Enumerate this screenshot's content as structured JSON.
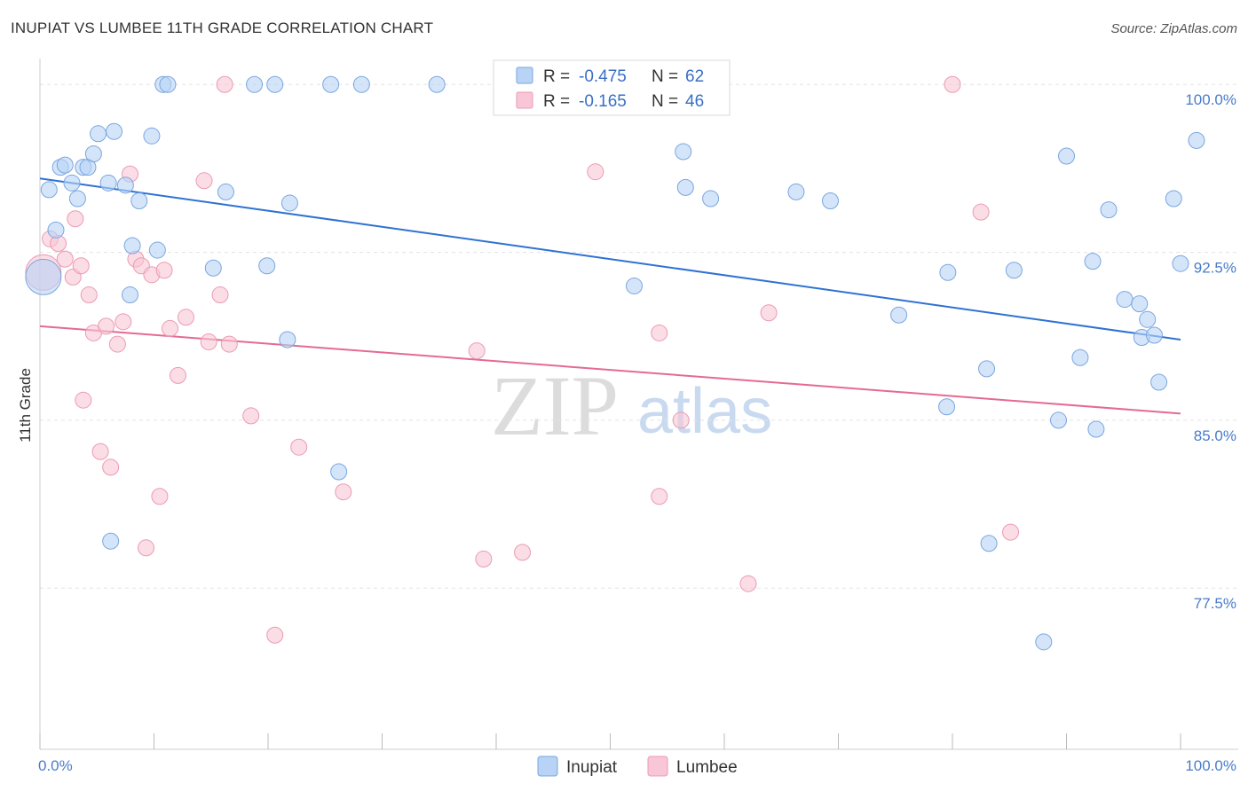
{
  "title": "INUPIAT VS LUMBEE 11TH GRADE CORRELATION CHART",
  "source": "Source: ZipAtlas.com",
  "watermark": {
    "zip": "ZIP",
    "atlas": "atlas"
  },
  "colors": {
    "inupiat_fill": "#b8d3f5",
    "inupiat_stroke": "#7aa6e0",
    "inupiat_line": "#2e72d2",
    "lumbee_fill": "#f8c6d6",
    "lumbee_stroke": "#ec9ab5",
    "lumbee_line": "#e46a94",
    "grid": "#e3e3e3",
    "axis_text": "#4a7cc9"
  },
  "legend": {
    "rows": [
      {
        "r_label": "R =",
        "r_value": "-0.475",
        "n_label": "N =",
        "n_value": "62"
      },
      {
        "r_label": "R =",
        "r_value": "-0.165",
        "n_label": "N =",
        "n_value": "46"
      }
    ]
  },
  "chart_data": {
    "type": "scatter",
    "xlabel": "",
    "ylabel": "11th Grade",
    "xlim": [
      0,
      100
    ],
    "ylim": [
      70.3,
      101.0
    ],
    "x_tick_labels": [
      "0.0%",
      "100.0%"
    ],
    "y_ticks": [
      77.5,
      85.0,
      92.5,
      100.0
    ],
    "y_tick_labels": [
      "77.5%",
      "85.0%",
      "92.5%",
      "100.0%"
    ],
    "grid": true,
    "legend_position": "top-center",
    "series": [
      {
        "name": "Inupiat",
        "trend": {
          "x": [
            0,
            100
          ],
          "y": [
            95.8,
            88.6
          ]
        },
        "points": [
          [
            0.3,
            91.4,
            20
          ],
          [
            0.8,
            95.3,
            9
          ],
          [
            1.4,
            93.5,
            9
          ],
          [
            1.8,
            96.3,
            9
          ],
          [
            2.2,
            96.4,
            9
          ],
          [
            2.8,
            95.6,
            9
          ],
          [
            3.3,
            94.9,
            9
          ],
          [
            3.8,
            96.3,
            9
          ],
          [
            4.2,
            96.3,
            9
          ],
          [
            4.7,
            96.9,
            9
          ],
          [
            5.1,
            97.8,
            9
          ],
          [
            6.0,
            95.6,
            9
          ],
          [
            6.5,
            97.9,
            9
          ],
          [
            7.5,
            95.5,
            9
          ],
          [
            8.1,
            92.8,
            9
          ],
          [
            8.7,
            94.8,
            9
          ],
          [
            9.8,
            97.7,
            9
          ],
          [
            10.3,
            92.6,
            9
          ],
          [
            7.9,
            90.6,
            9
          ],
          [
            6.2,
            79.6,
            9
          ],
          [
            10.8,
            100.0,
            9
          ],
          [
            11.2,
            100.0,
            9
          ],
          [
            15.2,
            91.8,
            9
          ],
          [
            16.3,
            95.2,
            9
          ],
          [
            18.8,
            100.0,
            9
          ],
          [
            19.9,
            91.9,
            9
          ],
          [
            20.6,
            100.0,
            9
          ],
          [
            21.7,
            88.6,
            9
          ],
          [
            21.9,
            94.7,
            9
          ],
          [
            25.5,
            100.0,
            9
          ],
          [
            26.2,
            82.7,
            9
          ],
          [
            28.2,
            100.0,
            9
          ],
          [
            34.8,
            100.0,
            9
          ],
          [
            47.1,
            100.0,
            9
          ],
          [
            52.1,
            91.0,
            9
          ],
          [
            56.4,
            97.0,
            9
          ],
          [
            56.6,
            95.4,
            9
          ],
          [
            58.8,
            94.9,
            9
          ],
          [
            66.3,
            95.2,
            9
          ],
          [
            69.3,
            94.8,
            9
          ],
          [
            75.3,
            89.7,
            9
          ],
          [
            79.5,
            85.6,
            9
          ],
          [
            79.6,
            91.6,
            9
          ],
          [
            83.0,
            87.3,
            9
          ],
          [
            83.2,
            79.5,
            9
          ],
          [
            85.4,
            91.7,
            9
          ],
          [
            88.0,
            75.1,
            9
          ],
          [
            89.3,
            85.0,
            9
          ],
          [
            90.0,
            96.8,
            9
          ],
          [
            91.2,
            87.8,
            9
          ],
          [
            92.3,
            92.1,
            9
          ],
          [
            92.6,
            84.6,
            9
          ],
          [
            93.7,
            94.4,
            9
          ],
          [
            95.1,
            90.4,
            9
          ],
          [
            96.4,
            90.2,
            9
          ],
          [
            97.1,
            89.5,
            9
          ],
          [
            96.6,
            88.7,
            9
          ],
          [
            97.7,
            88.8,
            9
          ],
          [
            98.1,
            86.7,
            9
          ],
          [
            99.4,
            94.9,
            9
          ],
          [
            100.0,
            92.0,
            9
          ],
          [
            101.4,
            97.5,
            9
          ]
        ]
      },
      {
        "name": "Lumbee",
        "trend": {
          "x": [
            0,
            100
          ],
          "y": [
            89.2,
            85.3
          ]
        },
        "points": [
          [
            0.3,
            91.6,
            20
          ],
          [
            0.9,
            93.1,
            9
          ],
          [
            1.6,
            92.9,
            9
          ],
          [
            2.2,
            92.2,
            9
          ],
          [
            2.9,
            91.4,
            9
          ],
          [
            3.1,
            94.0,
            9
          ],
          [
            3.6,
            91.9,
            9
          ],
          [
            3.8,
            85.9,
            9
          ],
          [
            4.3,
            90.6,
            9
          ],
          [
            4.7,
            88.9,
            9
          ],
          [
            5.3,
            83.6,
            9
          ],
          [
            5.8,
            89.2,
            9
          ],
          [
            6.2,
            82.9,
            9
          ],
          [
            6.8,
            88.4,
            9
          ],
          [
            7.3,
            89.4,
            9
          ],
          [
            7.9,
            96.0,
            9
          ],
          [
            8.4,
            92.2,
            9
          ],
          [
            8.9,
            91.9,
            9
          ],
          [
            9.3,
            79.3,
            9
          ],
          [
            9.8,
            91.5,
            9
          ],
          [
            10.5,
            81.6,
            9
          ],
          [
            10.9,
            91.7,
            9
          ],
          [
            11.4,
            89.1,
            9
          ],
          [
            12.1,
            87.0,
            9
          ],
          [
            12.8,
            89.6,
            9
          ],
          [
            14.4,
            95.7,
            9
          ],
          [
            14.8,
            88.5,
            9
          ],
          [
            15.8,
            90.6,
            9
          ],
          [
            16.6,
            88.4,
            9
          ],
          [
            16.2,
            100.0,
            9
          ],
          [
            18.5,
            85.2,
            9
          ],
          [
            20.6,
            75.4,
            9
          ],
          [
            22.7,
            83.8,
            9
          ],
          [
            26.6,
            81.8,
            9
          ],
          [
            38.3,
            88.1,
            9
          ],
          [
            38.9,
            78.8,
            9
          ],
          [
            42.3,
            79.1,
            9
          ],
          [
            48.7,
            96.1,
            9
          ],
          [
            54.3,
            81.6,
            9
          ],
          [
            54.3,
            88.9,
            9
          ],
          [
            56.2,
            85.0,
            9
          ],
          [
            62.1,
            77.7,
            9
          ],
          [
            63.9,
            89.8,
            9
          ],
          [
            80.0,
            100.0,
            9
          ],
          [
            82.5,
            94.3,
            9
          ],
          [
            85.1,
            80.0,
            9
          ]
        ]
      }
    ]
  },
  "bottom_legend": [
    {
      "label": "Inupiat"
    },
    {
      "label": "Lumbee"
    }
  ]
}
